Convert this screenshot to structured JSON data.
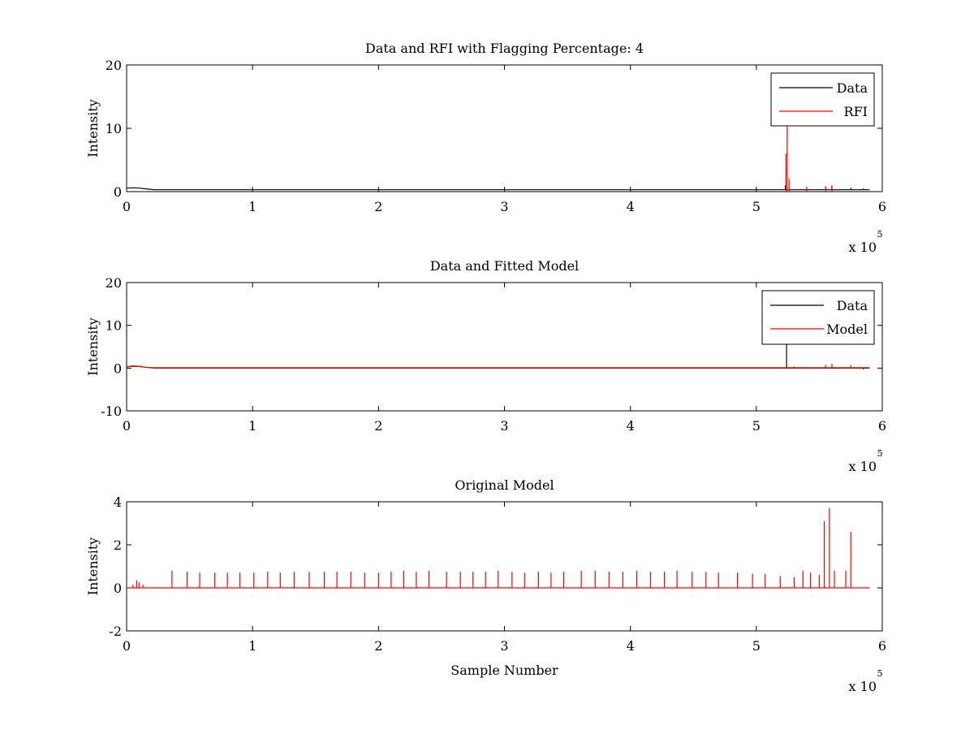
{
  "figure": {
    "background": "#ffffff",
    "axis_color": "#000000",
    "data_color": "#000000",
    "rfi_color": "#ff0000",
    "model_color": "#ff0000"
  },
  "chart_data": [
    {
      "type": "line",
      "title": "Data and RFI with Flagging Percentage: 4",
      "xlabel": "",
      "ylabel": "Intensity",
      "xlim": [
        0,
        600000
      ],
      "ylim": [
        0,
        20
      ],
      "x_ticks": [
        0,
        100000,
        200000,
        300000,
        400000,
        500000,
        600000
      ],
      "x_tick_labels": [
        "0",
        "1",
        "2",
        "3",
        "4",
        "5",
        "6"
      ],
      "y_ticks": [
        0,
        10,
        20
      ],
      "y_tick_labels": [
        "0",
        "10",
        "20"
      ],
      "x_multiplier": {
        "base": "x 10",
        "exponent": "5"
      },
      "grid": false,
      "legend_position": "top-right",
      "series": [
        {
          "name": "Data",
          "color": "#000000",
          "baseline": [
            [
              0,
              0.55
            ],
            [
              5000,
              0.6
            ],
            [
              10000,
              0.55
            ],
            [
              15000,
              0.45
            ],
            [
              22000,
              0.3
            ],
            [
              40000,
              0.3
            ],
            [
              590000,
              0.3
            ]
          ],
          "spikes": [
            [
              523000,
              1.0
            ],
            [
              555000,
              0.8
            ],
            [
              560000,
              0.9
            ],
            [
              575000,
              0.6
            ],
            [
              585000,
              0.5
            ]
          ]
        },
        {
          "name": "RFI",
          "color": "#ff0000",
          "baseline": [],
          "spikes": [
            [
              523500,
              6.0
            ],
            [
              524500,
              13.0
            ],
            [
              526000,
              2.0
            ],
            [
              540000,
              0.8
            ],
            [
              555000,
              0.8
            ],
            [
              560000,
              1.0
            ]
          ]
        }
      ]
    },
    {
      "type": "line",
      "title": "Data and Fitted Model",
      "xlabel": "",
      "ylabel": "Intensity",
      "xlim": [
        0,
        600000
      ],
      "ylim": [
        -10,
        20
      ],
      "x_ticks": [
        0,
        100000,
        200000,
        300000,
        400000,
        500000,
        600000
      ],
      "x_tick_labels": [
        "0",
        "1",
        "2",
        "3",
        "4",
        "5",
        "6"
      ],
      "y_ticks": [
        -10,
        0,
        10,
        20
      ],
      "y_tick_labels": [
        "-10",
        "0",
        "10",
        "20"
      ],
      "x_multiplier": {
        "base": "x 10",
        "exponent": "5"
      },
      "grid": false,
      "legend_position": "top-right",
      "series": [
        {
          "name": "Data",
          "color": "#000000",
          "baseline": [
            [
              0,
              0.3
            ],
            [
              5000,
              0.5
            ],
            [
              10000,
              0.4
            ],
            [
              15000,
              0.2
            ],
            [
              22000,
              0.0
            ],
            [
              590000,
              0.0
            ]
          ],
          "spikes": [
            [
              524000,
              10.5
            ],
            [
              530000,
              0.3
            ],
            [
              585000,
              -0.3
            ]
          ]
        },
        {
          "name": "Model",
          "color": "#ff0000",
          "baseline": [
            [
              0,
              0.3
            ],
            [
              5000,
              0.4
            ],
            [
              10000,
              0.35
            ],
            [
              15000,
              0.2
            ],
            [
              22000,
              0.1
            ],
            [
              590000,
              0.1
            ]
          ],
          "spikes": [
            [
              555000,
              0.8
            ],
            [
              560000,
              1.0
            ],
            [
              575000,
              0.7
            ]
          ]
        }
      ]
    },
    {
      "type": "line",
      "title": "Original Model",
      "xlabel": "Sample Number",
      "ylabel": "Intensity",
      "xlim": [
        0,
        600000
      ],
      "ylim": [
        -2,
        4
      ],
      "x_ticks": [
        0,
        100000,
        200000,
        300000,
        400000,
        500000,
        600000
      ],
      "x_tick_labels": [
        "0",
        "1",
        "2",
        "3",
        "4",
        "5",
        "6"
      ],
      "y_ticks": [
        -2,
        0,
        2,
        4
      ],
      "y_tick_labels": [
        "-2",
        "0",
        "2",
        "4"
      ],
      "x_multiplier": {
        "base": "x 10",
        "exponent": "5"
      },
      "grid": false,
      "legend_position": "",
      "series": [
        {
          "name": "",
          "color": "#ff0000",
          "baseline": [
            [
              0,
              0.0
            ],
            [
              590000,
              0.0
            ]
          ],
          "spikes": [
            [
              5000,
              0.15
            ],
            [
              8000,
              0.35
            ],
            [
              10000,
              0.25
            ],
            [
              13000,
              0.15
            ],
            [
              36000,
              0.8
            ],
            [
              48000,
              0.75
            ],
            [
              58000,
              0.7
            ],
            [
              70000,
              0.7
            ],
            [
              80000,
              0.7
            ],
            [
              90000,
              0.7
            ],
            [
              101000,
              0.7
            ],
            [
              112000,
              0.75
            ],
            [
              122000,
              0.7
            ],
            [
              133000,
              0.75
            ],
            [
              145000,
              0.75
            ],
            [
              157000,
              0.75
            ],
            [
              167000,
              0.75
            ],
            [
              178000,
              0.75
            ],
            [
              189000,
              0.7
            ],
            [
              200000,
              0.7
            ],
            [
              210000,
              0.75
            ],
            [
              220000,
              0.8
            ],
            [
              230000,
              0.75
            ],
            [
              240000,
              0.8
            ],
            [
              254000,
              0.75
            ],
            [
              265000,
              0.75
            ],
            [
              275000,
              0.75
            ],
            [
              285000,
              0.75
            ],
            [
              295000,
              0.8
            ],
            [
              306000,
              0.75
            ],
            [
              316000,
              0.7
            ],
            [
              327000,
              0.75
            ],
            [
              337000,
              0.7
            ],
            [
              347000,
              0.75
            ],
            [
              361000,
              0.8
            ],
            [
              372000,
              0.8
            ],
            [
              383000,
              0.75
            ],
            [
              394000,
              0.75
            ],
            [
              405000,
              0.8
            ],
            [
              416000,
              0.75
            ],
            [
              427000,
              0.75
            ],
            [
              437000,
              0.8
            ],
            [
              449000,
              0.75
            ],
            [
              460000,
              0.75
            ],
            [
              470000,
              0.7
            ],
            [
              485000,
              0.7
            ],
            [
              497000,
              0.65
            ],
            [
              507000,
              0.65
            ],
            [
              519000,
              0.55
            ],
            [
              530000,
              0.5
            ],
            [
              537000,
              0.8
            ],
            [
              543000,
              0.7
            ],
            [
              550000,
              0.6
            ],
            [
              554000,
              3.1
            ],
            [
              558000,
              3.7
            ],
            [
              562000,
              0.8
            ],
            [
              571000,
              0.8
            ],
            [
              575000,
              2.6
            ]
          ]
        }
      ]
    }
  ]
}
